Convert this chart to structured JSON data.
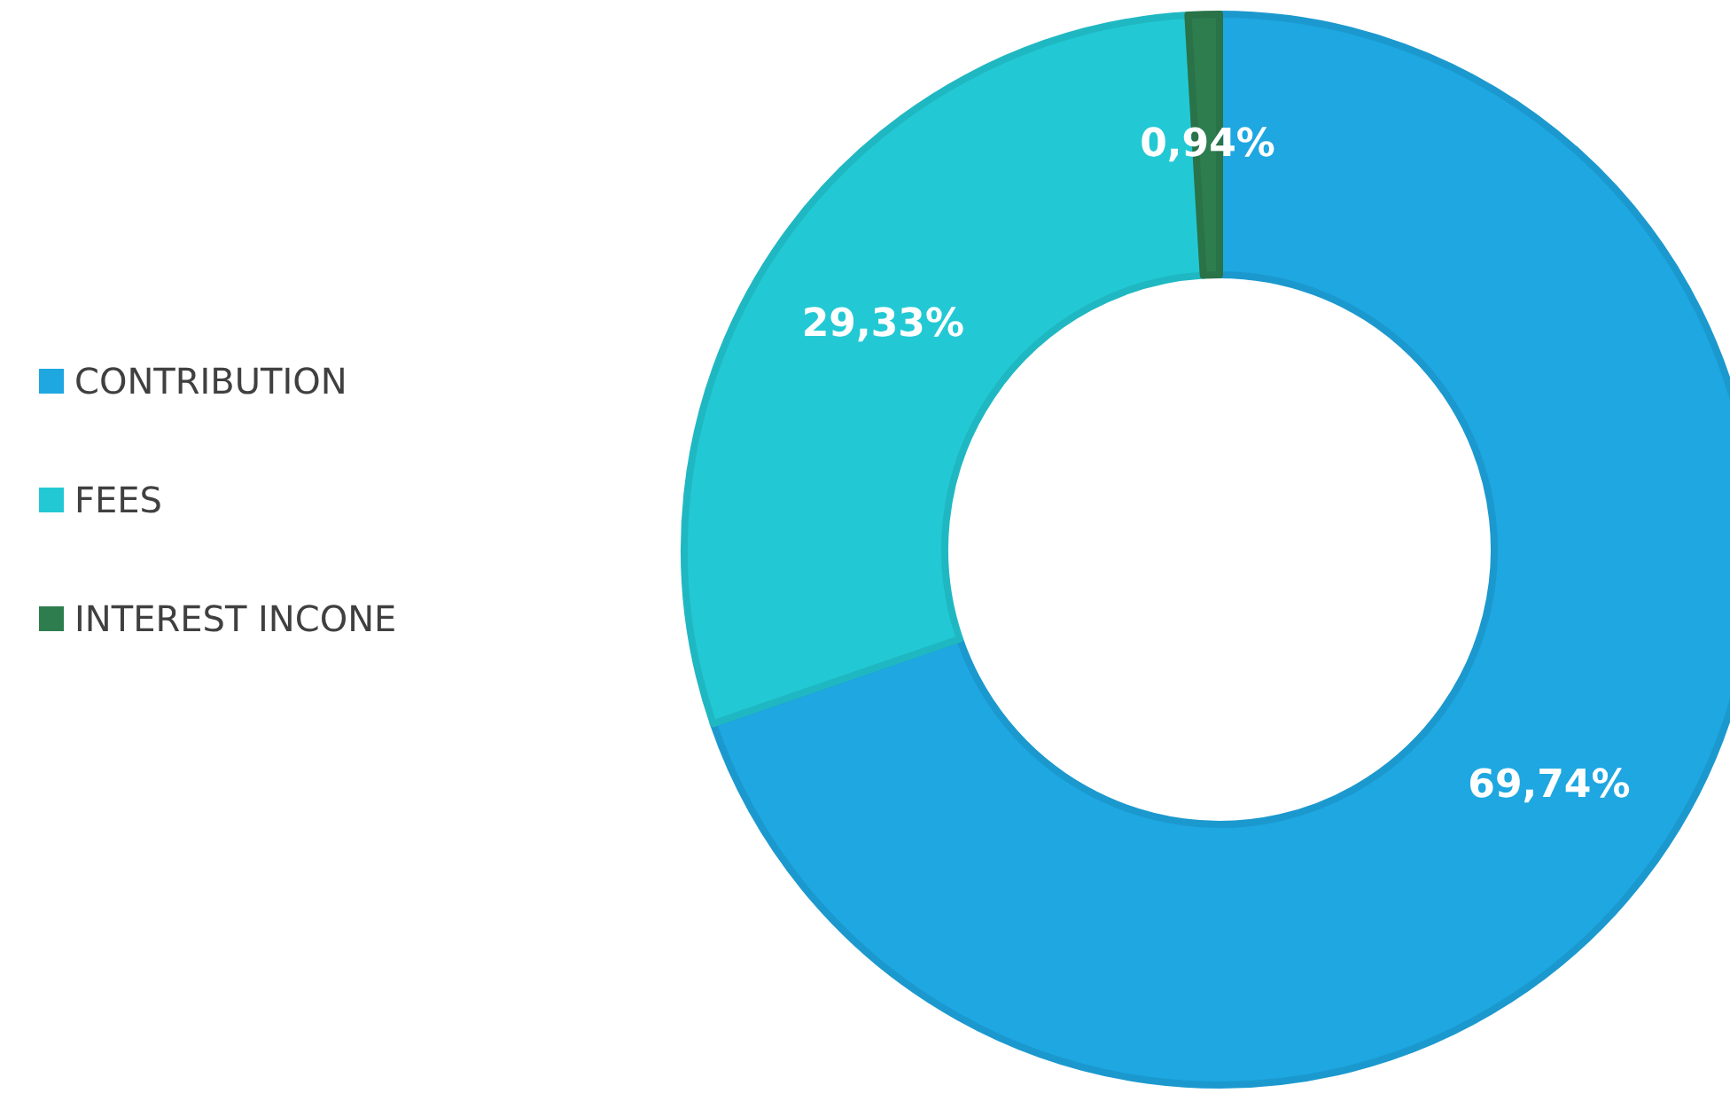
{
  "chart_data": {
    "type": "donut",
    "categories": [
      "CONTRIBUTION",
      "FEES",
      "INTEREST INCONE"
    ],
    "values": [
      69.74,
      29.33,
      0.94
    ],
    "colors": [
      "#1ea7e1",
      "#22c9d4",
      "#2e7d4f"
    ],
    "value_labels": [
      "69,74%",
      "29,33%",
      "0,94%"
    ],
    "legend": "left"
  }
}
